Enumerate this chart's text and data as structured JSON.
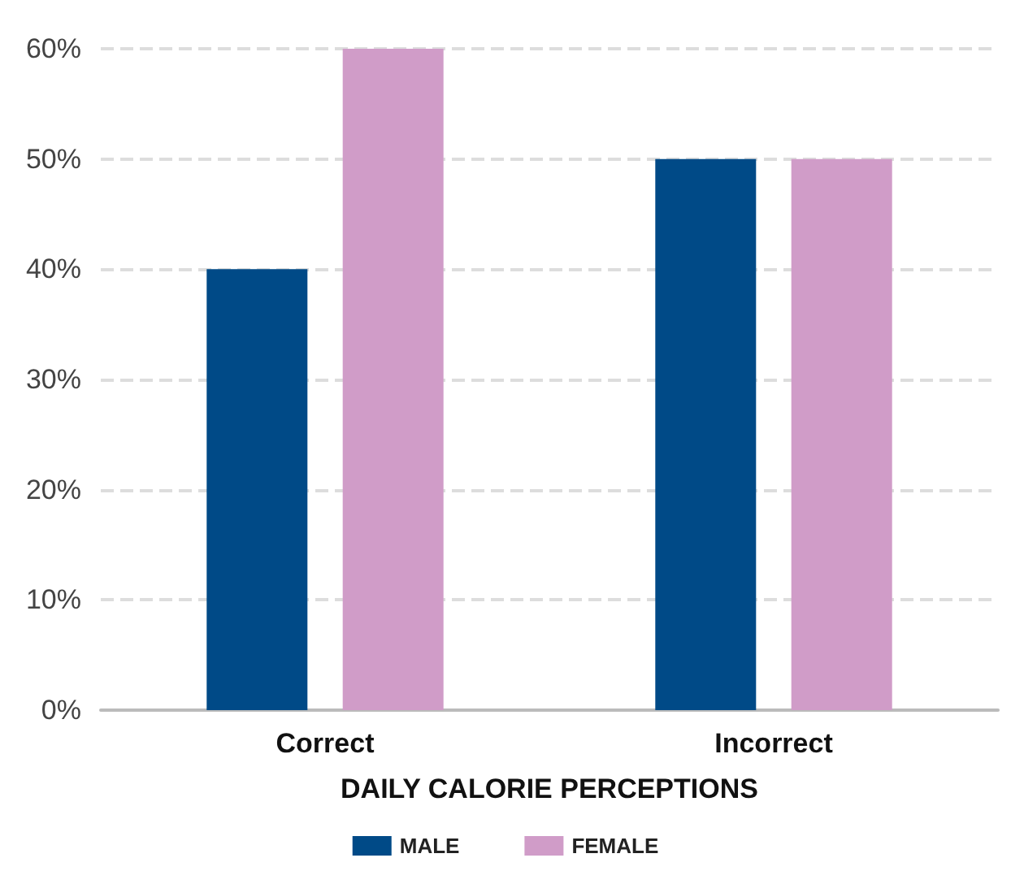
{
  "chart_data": {
    "type": "bar",
    "xlabel": "DAILY CALORIE PERCEPTIONS",
    "categories": [
      "Correct",
      "Incorrect"
    ],
    "series": [
      {
        "name": "MALE",
        "color": "#004a87",
        "values": [
          40,
          50
        ]
      },
      {
        "name": "FEMALE",
        "color": "#d09cc8",
        "values": [
          60,
          50
        ]
      }
    ],
    "ylim": [
      0,
      60
    ],
    "yticks": [
      {
        "value": 0,
        "label": "0%"
      },
      {
        "value": 10,
        "label": "10%"
      },
      {
        "value": 20,
        "label": "20%"
      },
      {
        "value": 30,
        "label": "30%"
      },
      {
        "value": 40,
        "label": "40%"
      },
      {
        "value": 50,
        "label": "50%"
      },
      {
        "value": 60,
        "label": "60%"
      }
    ],
    "grid": "y",
    "legend": "bottom"
  }
}
